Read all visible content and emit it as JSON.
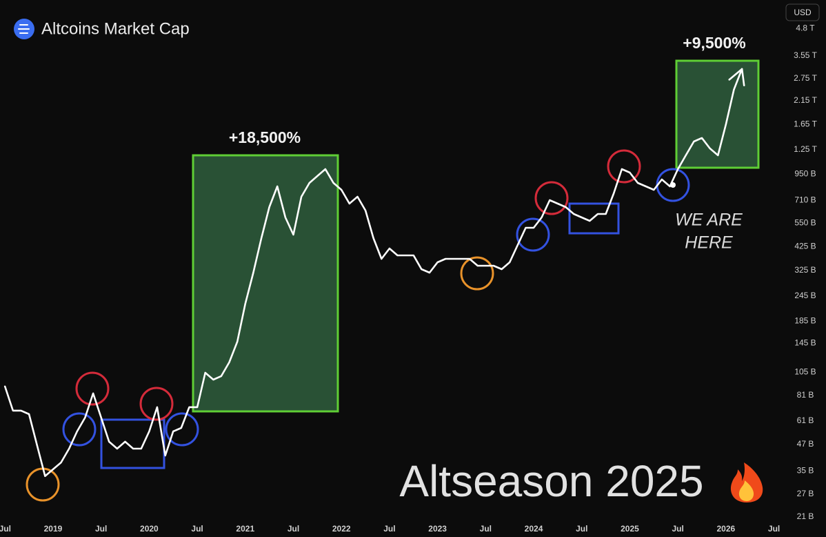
{
  "chart_data": {
    "type": "line",
    "title": "Altcoins Market Cap",
    "currency": "USD",
    "annotations": [
      "+18,500%",
      "+9,500%",
      "WE ARE",
      "HERE",
      "Altseason 2025"
    ],
    "log_y": true,
    "grid": false,
    "color": "#ffffff",
    "x": [
      2018.5,
      2018.583,
      2018.667,
      2018.75,
      2018.833,
      2018.917,
      2019.0,
      2019.083,
      2019.167,
      2019.25,
      2019.333,
      2019.417,
      2019.5,
      2019.583,
      2019.667,
      2019.75,
      2019.833,
      2019.917,
      2020.0,
      2020.083,
      2020.167,
      2020.25,
      2020.333,
      2020.417,
      2020.5,
      2020.583,
      2020.667,
      2020.75,
      2020.833,
      2020.917,
      2021.0,
      2021.083,
      2021.167,
      2021.25,
      2021.333,
      2021.417,
      2021.5,
      2021.583,
      2021.667,
      2021.75,
      2021.833,
      2021.917,
      2022.0,
      2022.083,
      2022.167,
      2022.25,
      2022.333,
      2022.417,
      2022.5,
      2022.583,
      2022.667,
      2022.75,
      2022.833,
      2022.917,
      2023.0,
      2023.083,
      2023.167,
      2023.25,
      2023.333,
      2023.417,
      2023.5,
      2023.583,
      2023.667,
      2023.75,
      2023.833,
      2023.917,
      2024.0,
      2024.083,
      2024.167,
      2024.25,
      2024.333,
      2024.417,
      2024.5,
      2024.583,
      2024.667,
      2024.75,
      2024.833,
      2024.917,
      2025.0,
      2025.083,
      2025.167,
      2025.25,
      2025.333,
      2025.417,
      2025.5,
      2025.583,
      2025.667,
      2025.75,
      2025.833,
      2025.917,
      2026.0,
      2026.083,
      2026.167
    ],
    "values": [
      89.5,
      68.4,
      68.4,
      65.8,
      46.6,
      33.0,
      35.6,
      38.4,
      44.8,
      54.3,
      63.3,
      82.9,
      63.3,
      48.4,
      44.8,
      48.4,
      44.8,
      44.8,
      54.3,
      71.1,
      41.5,
      54.3,
      56.4,
      71.1,
      71.1,
      104.3,
      96.6,
      100.4,
      117.1,
      147.4,
      224.9,
      317.7,
      466.4,
      659.0,
      829.8,
      587.3,
      484.7,
      739.5,
      862.3,
      931.1,
      1005,
      862.3,
      798.5,
      684.8,
      739.5,
      634.2,
      466.4,
      370.4,
      415.7,
      384.9,
      384.9,
      384.9,
      330.1,
      317.7,
      356.5,
      370.4,
      370.4,
      370.4,
      370.4,
      343.0,
      343.0,
      343.0,
      330.1,
      356.5,
      432.0,
      523.4,
      523.4,
      587.3,
      711.6,
      684.8,
      659.0,
      610.3,
      587.3,
      565.2,
      610.3,
      610.3,
      768.4,
      1005,
      967.5,
      862.3,
      829.8,
      798.5,
      896.0,
      829.8,
      1005,
      1172,
      1367,
      1421,
      1266,
      1172,
      1657,
      2433,
      3063
    ],
    "xlim": [
      2018.448,
      2026.625
    ],
    "xticks": [
      {
        "value": 2018.5,
        "label": "Jul"
      },
      2019,
      {
        "value": 2019.5,
        "label": "Jul"
      },
      2020,
      {
        "value": 2020.5,
        "label": "Jul"
      },
      2021,
      {
        "value": 2021.5,
        "label": "Jul"
      },
      2022,
      {
        "value": 2022.5,
        "label": "Jul"
      },
      2023,
      {
        "value": 2023.5,
        "label": "Jul"
      },
      2024,
      {
        "value": 2024.5,
        "label": "Jul"
      },
      2025,
      {
        "value": 2025.5,
        "label": "Jul"
      },
      2026,
      {
        "value": 2026.5,
        "label": "Jul"
      }
    ],
    "ylim": [
      20,
      6600
    ],
    "yticks": [
      {
        "value": 4800,
        "label": "4.8 T"
      },
      {
        "value": 3550,
        "label": "3.55 T"
      },
      {
        "value": 2750,
        "label": "2.75 T"
      },
      {
        "value": 2150,
        "label": "2.15 T"
      },
      {
        "value": 1650,
        "label": "1.65 T"
      },
      {
        "value": 1250,
        "label": "1.25 T"
      },
      {
        "value": 950,
        "label": "950 B"
      },
      {
        "value": 710,
        "label": "710 B"
      },
      {
        "value": 550,
        "label": "550 B"
      },
      {
        "value": 425,
        "label": "425 B"
      },
      {
        "value": 325,
        "label": "325 B"
      },
      {
        "value": 245,
        "label": "245 B"
      },
      {
        "value": 185,
        "label": "185 B"
      },
      {
        "value": 145,
        "label": "145 B"
      },
      {
        "value": 105,
        "label": "105 B"
      },
      {
        "value": 81,
        "label": "81 B"
      },
      {
        "value": 61,
        "label": "61 B"
      },
      {
        "value": 47,
        "label": "47 B"
      },
      {
        "value": 35,
        "label": "35 B"
      },
      {
        "value": 27,
        "label": "27 B"
      },
      {
        "value": 21,
        "label": "21 B"
      }
    ]
  }
}
